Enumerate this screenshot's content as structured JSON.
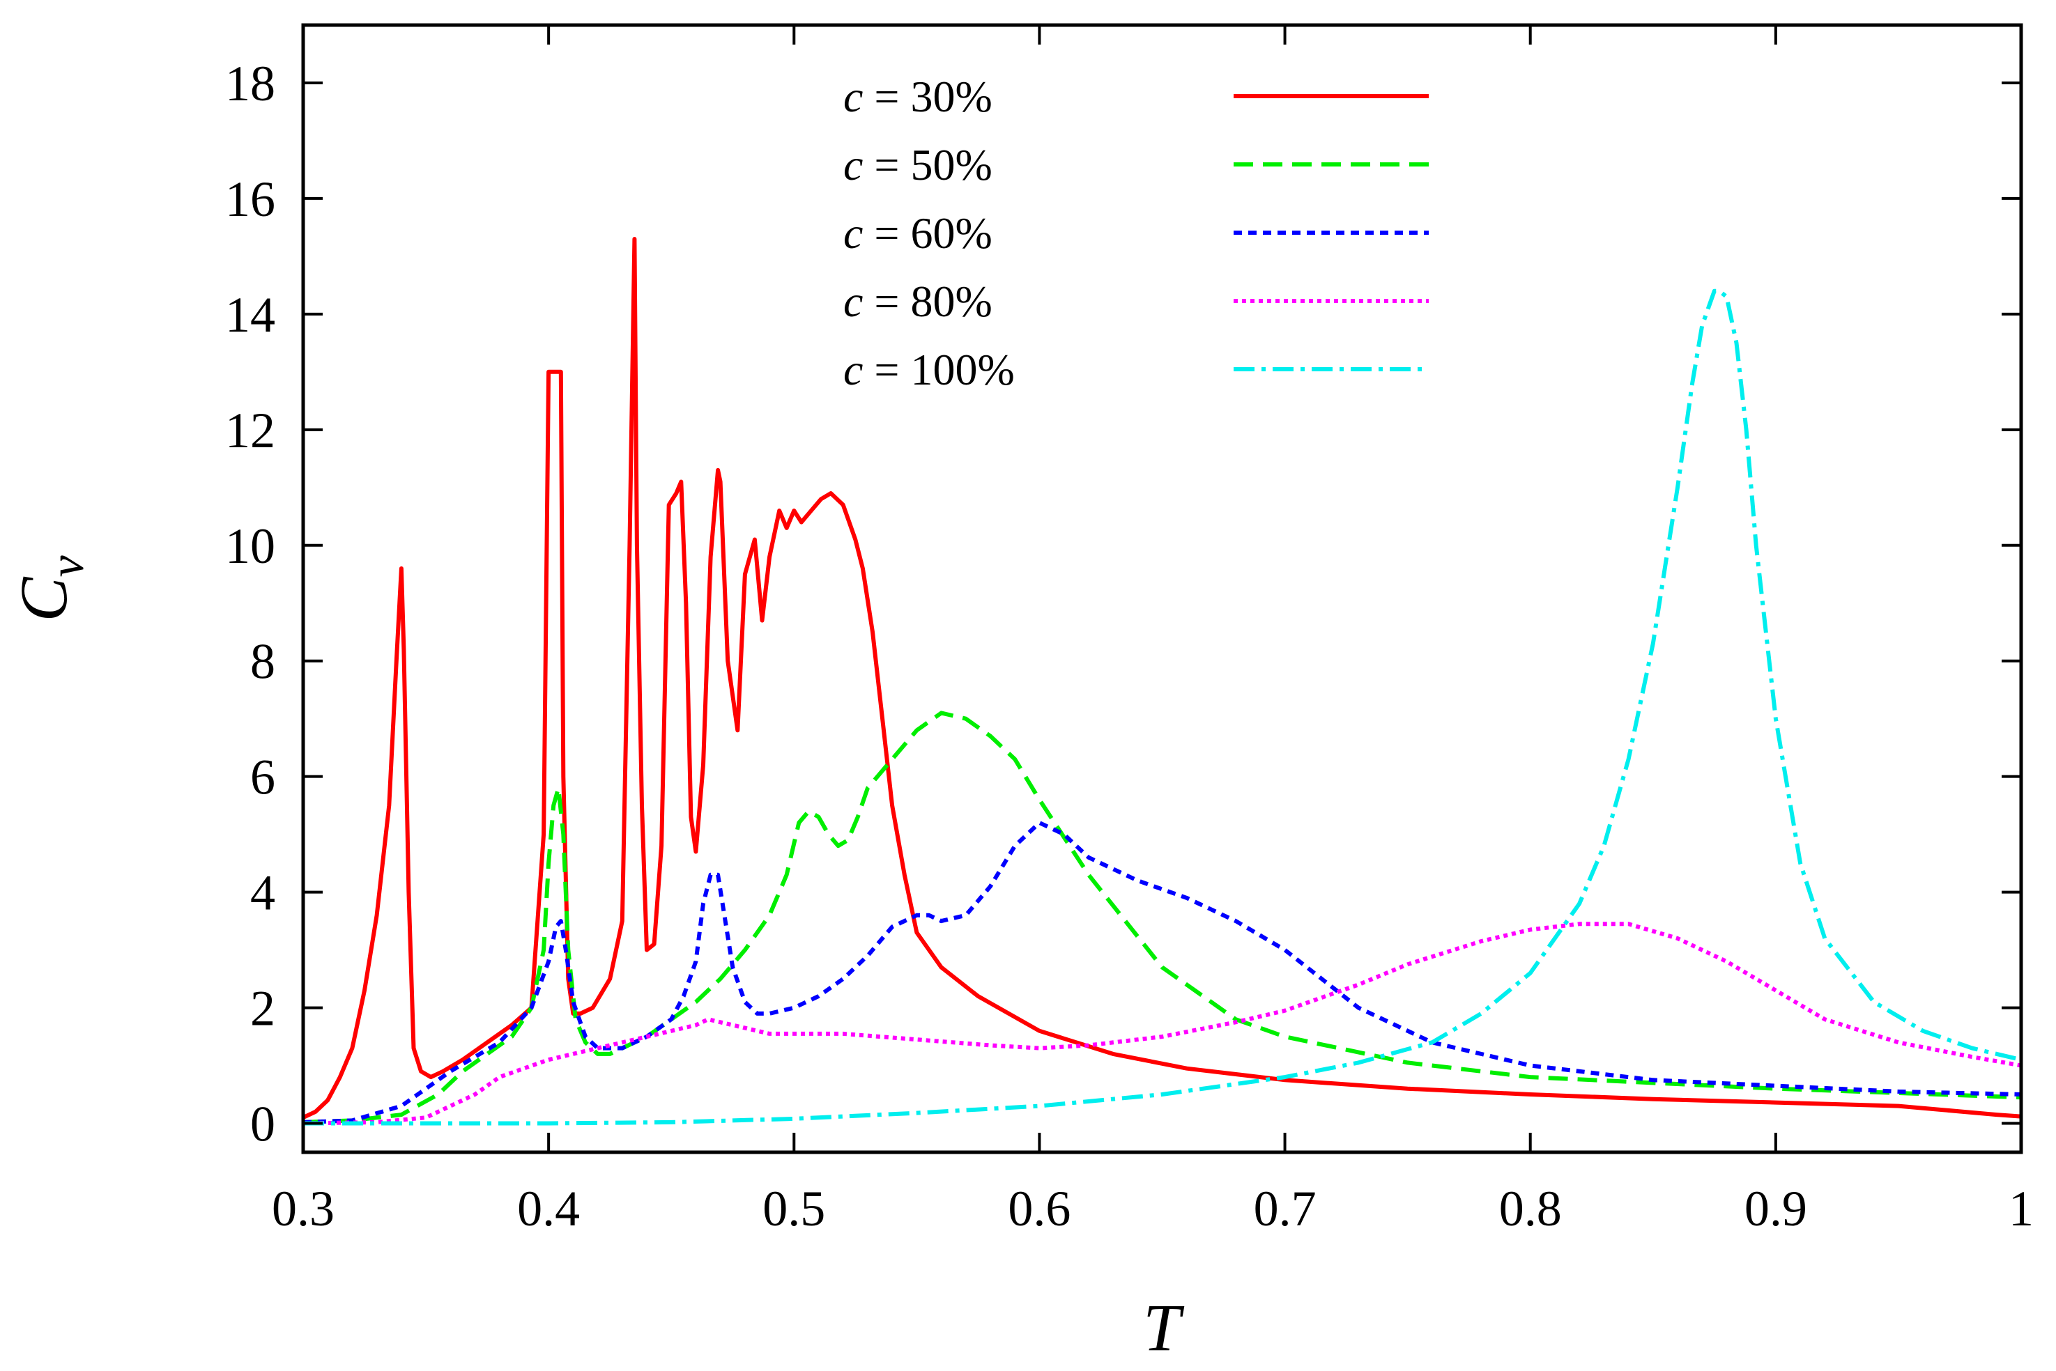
{
  "chart_data": {
    "type": "line",
    "title": "",
    "xlabel": "T",
    "ylabel": "C",
    "ylabel_subscript": "v",
    "xlim": [
      0.3,
      1.0
    ],
    "ylim": [
      -0.5,
      19
    ],
    "xticks": [
      0.3,
      0.4,
      0.5,
      0.6,
      0.7,
      0.8,
      0.9,
      1.0
    ],
    "xtick_labels": [
      "0.3",
      "0.4",
      "0.5",
      "0.6",
      "0.7",
      "0.8",
      "0.9",
      "1"
    ],
    "yticks": [
      0,
      2,
      4,
      6,
      8,
      10,
      12,
      14,
      16,
      18
    ],
    "ytick_labels": [
      "0",
      "2",
      "4",
      "6",
      "8",
      "10",
      "12",
      "14",
      "16",
      "18"
    ],
    "grid": false,
    "legend_position": "top-center",
    "series": [
      {
        "name": "c = 30%",
        "legend_var": "c",
        "legend_rest": " = 30%",
        "color": "#ff0000",
        "dash": "",
        "x": [
          0.3,
          0.305,
          0.31,
          0.315,
          0.32,
          0.325,
          0.33,
          0.335,
          0.338,
          0.34,
          0.341,
          0.343,
          0.345,
          0.348,
          0.352,
          0.357,
          0.365,
          0.375,
          0.385,
          0.393,
          0.398,
          0.4,
          0.401,
          0.402,
          0.405,
          0.406,
          0.408,
          0.41,
          0.413,
          0.418,
          0.425,
          0.43,
          0.433,
          0.435,
          0.436,
          0.438,
          0.44,
          0.443,
          0.446,
          0.449,
          0.452,
          0.454,
          0.456,
          0.458,
          0.46,
          0.463,
          0.466,
          0.469,
          0.47,
          0.473,
          0.477,
          0.48,
          0.484,
          0.487,
          0.49,
          0.494,
          0.497,
          0.5,
          0.503,
          0.507,
          0.511,
          0.515,
          0.52,
          0.525,
          0.528,
          0.532,
          0.536,
          0.54,
          0.545,
          0.55,
          0.56,
          0.575,
          0.6,
          0.63,
          0.66,
          0.7,
          0.75,
          0.8,
          0.85,
          0.9,
          0.95,
          0.99,
          1.0
        ],
        "y": [
          0.1,
          0.2,
          0.4,
          0.8,
          1.3,
          2.3,
          3.6,
          5.5,
          8.0,
          9.6,
          8.2,
          4.0,
          1.3,
          0.9,
          0.8,
          0.9,
          1.1,
          1.4,
          1.7,
          2.0,
          5.0,
          13.0,
          13.0,
          13.0,
          13.0,
          6.0,
          2.5,
          1.9,
          1.9,
          2.0,
          2.5,
          3.5,
          10.0,
          15.3,
          10.0,
          5.5,
          3.0,
          3.1,
          4.8,
          10.7,
          10.9,
          11.1,
          9.0,
          5.3,
          4.7,
          6.2,
          9.8,
          11.3,
          11.1,
          8.0,
          6.8,
          9.5,
          10.1,
          8.7,
          9.8,
          10.6,
          10.3,
          10.6,
          10.4,
          10.6,
          10.8,
          10.9,
          10.7,
          10.1,
          9.6,
          8.5,
          7.0,
          5.5,
          4.3,
          3.3,
          2.7,
          2.2,
          1.6,
          1.2,
          0.95,
          0.75,
          0.6,
          0.5,
          0.42,
          0.36,
          0.3,
          0.15,
          0.12
        ]
      },
      {
        "name": "c = 50%",
        "legend_var": "c",
        "legend_rest": " = 50%",
        "color": "#00ee00",
        "dash": "28,14",
        "x": [
          0.3,
          0.32,
          0.34,
          0.355,
          0.365,
          0.375,
          0.385,
          0.393,
          0.398,
          0.4,
          0.402,
          0.404,
          0.406,
          0.408,
          0.411,
          0.415,
          0.42,
          0.425,
          0.43,
          0.44,
          0.45,
          0.46,
          0.47,
          0.48,
          0.49,
          0.497,
          0.502,
          0.506,
          0.51,
          0.514,
          0.518,
          0.522,
          0.526,
          0.53,
          0.54,
          0.55,
          0.56,
          0.57,
          0.58,
          0.59,
          0.6,
          0.62,
          0.65,
          0.68,
          0.7,
          0.75,
          0.8,
          0.9,
          1.0
        ],
        "y": [
          0.02,
          0.05,
          0.15,
          0.5,
          0.9,
          1.2,
          1.5,
          2.0,
          3.0,
          4.5,
          5.5,
          5.8,
          5.0,
          3.0,
          1.8,
          1.4,
          1.2,
          1.2,
          1.3,
          1.5,
          1.8,
          2.1,
          2.5,
          3.0,
          3.6,
          4.3,
          5.2,
          5.4,
          5.3,
          5.0,
          4.8,
          4.9,
          5.3,
          5.8,
          6.3,
          6.8,
          7.1,
          7.0,
          6.7,
          6.3,
          5.6,
          4.3,
          2.7,
          1.8,
          1.5,
          1.05,
          0.8,
          0.6,
          0.45
        ]
      },
      {
        "name": "c = 60%",
        "legend_var": "c",
        "legend_rest": " = 60%",
        "color": "#0000ff",
        "dash": "12,9",
        "x": [
          0.3,
          0.32,
          0.34,
          0.36,
          0.38,
          0.393,
          0.4,
          0.403,
          0.405,
          0.407,
          0.41,
          0.415,
          0.42,
          0.43,
          0.44,
          0.45,
          0.455,
          0.46,
          0.463,
          0.466,
          0.469,
          0.472,
          0.475,
          0.48,
          0.485,
          0.49,
          0.5,
          0.51,
          0.52,
          0.53,
          0.54,
          0.55,
          0.555,
          0.56,
          0.57,
          0.58,
          0.59,
          0.6,
          0.61,
          0.62,
          0.64,
          0.66,
          0.68,
          0.7,
          0.73,
          0.76,
          0.8,
          0.85,
          0.9,
          0.95,
          1.0
        ],
        "y": [
          0.02,
          0.05,
          0.3,
          0.9,
          1.4,
          2.0,
          2.8,
          3.4,
          3.5,
          3.0,
          2.1,
          1.5,
          1.3,
          1.3,
          1.5,
          1.8,
          2.2,
          2.8,
          3.8,
          4.3,
          4.3,
          3.5,
          2.7,
          2.1,
          1.9,
          1.9,
          2.0,
          2.2,
          2.5,
          2.9,
          3.4,
          3.6,
          3.6,
          3.5,
          3.6,
          4.1,
          4.8,
          5.2,
          5.0,
          4.6,
          4.2,
          3.9,
          3.5,
          3.0,
          2.0,
          1.4,
          1.0,
          0.75,
          0.65,
          0.55,
          0.5
        ]
      },
      {
        "name": "c = 80%",
        "legend_var": "c",
        "legend_rest": " = 80%",
        "color": "#ff00ff",
        "dash": "6,6",
        "x": [
          0.3,
          0.33,
          0.35,
          0.37,
          0.38,
          0.4,
          0.42,
          0.44,
          0.45,
          0.46,
          0.465,
          0.47,
          0.48,
          0.49,
          0.5,
          0.52,
          0.55,
          0.58,
          0.6,
          0.62,
          0.65,
          0.68,
          0.7,
          0.73,
          0.75,
          0.78,
          0.8,
          0.82,
          0.84,
          0.86,
          0.88,
          0.9,
          0.92,
          0.95,
          0.98,
          1.0
        ],
        "y": [
          0.0,
          0.02,
          0.1,
          0.5,
          0.8,
          1.1,
          1.3,
          1.5,
          1.6,
          1.7,
          1.8,
          1.75,
          1.65,
          1.55,
          1.55,
          1.55,
          1.45,
          1.35,
          1.3,
          1.35,
          1.5,
          1.75,
          1.95,
          2.4,
          2.75,
          3.15,
          3.35,
          3.45,
          3.45,
          3.2,
          2.8,
          2.3,
          1.8,
          1.4,
          1.15,
          1.0
        ]
      },
      {
        "name": "c = 100%",
        "legend_var": "c",
        "legend_rest": " = 100%",
        "color": "#00eeee",
        "dash": "30,10,6,10",
        "x": [
          0.3,
          0.4,
          0.45,
          0.5,
          0.55,
          0.6,
          0.65,
          0.7,
          0.73,
          0.76,
          0.78,
          0.8,
          0.82,
          0.83,
          0.84,
          0.85,
          0.86,
          0.866,
          0.87,
          0.875,
          0.877,
          0.88,
          0.884,
          0.888,
          0.892,
          0.9,
          0.91,
          0.92,
          0.94,
          0.96,
          0.98,
          1.0
        ],
        "y": [
          0.0,
          0.0,
          0.02,
          0.08,
          0.18,
          0.3,
          0.5,
          0.8,
          1.05,
          1.4,
          1.9,
          2.6,
          3.8,
          4.8,
          6.3,
          8.3,
          11.0,
          12.8,
          13.8,
          14.4,
          14.4,
          14.3,
          13.5,
          12.0,
          10.0,
          7.0,
          4.5,
          3.2,
          2.1,
          1.6,
          1.3,
          1.1
        ]
      }
    ]
  }
}
